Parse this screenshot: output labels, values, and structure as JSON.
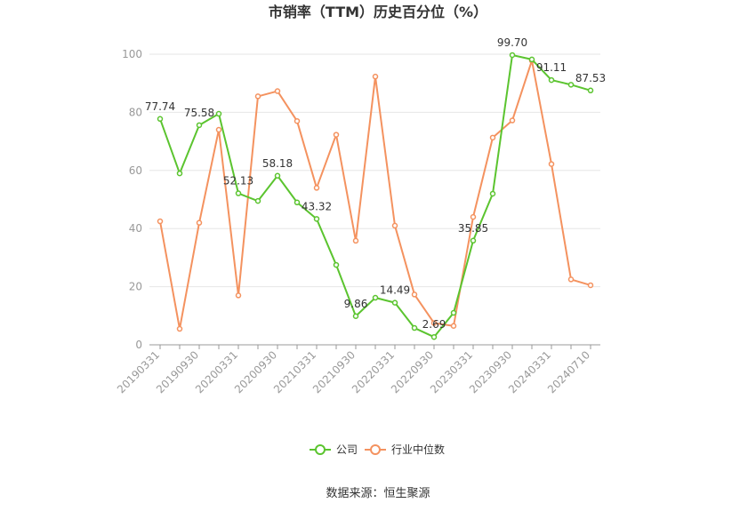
{
  "chart_data": {
    "type": "line",
    "title": "市销率（TTM）历史百分位（%）",
    "xlabel": "",
    "ylabel": "",
    "ylim": [
      0,
      100
    ],
    "yticks": [
      0,
      20,
      40,
      60,
      80,
      100
    ],
    "grid": true,
    "legend_position": "bottom",
    "x": [
      "20190331",
      "20190630",
      "20190930",
      "20191231",
      "20200331",
      "20200630",
      "20200930",
      "20201231",
      "20210331",
      "20210630",
      "20210930",
      "20211231",
      "20220331",
      "20220630",
      "20220930",
      "20221231",
      "20230331",
      "20230630",
      "20230930",
      "20231231",
      "20240331",
      "20240630",
      "20240710"
    ],
    "x_tick_labels": [
      "20190331",
      "20190930",
      "20200331",
      "20200930",
      "20210331",
      "20210930",
      "20220331",
      "20220930",
      "20230331",
      "20230930",
      "20240331",
      "20240710"
    ],
    "series": [
      {
        "name": "公司",
        "color": "#5bc42f",
        "values": [
          77.74,
          59,
          75.58,
          79.5,
          52.13,
          49.5,
          58.18,
          49,
          43.32,
          27.5,
          9.86,
          16.2,
          14.49,
          5.8,
          2.69,
          11,
          35.85,
          52,
          99.7,
          98.2,
          91.11,
          89.5,
          87.53
        ],
        "labels": {
          "0": "77.74",
          "2": "75.58",
          "4": "52.13",
          "6": "58.18",
          "8": "43.32",
          "10": "9.86",
          "12": "14.49",
          "14": "2.69",
          "16": "35.85",
          "18": "99.70",
          "20": "91.11",
          "22": "87.53"
        }
      },
      {
        "name": "行业中位数",
        "color": "#f4925f",
        "values": [
          42.5,
          5.5,
          42,
          74,
          17,
          85.5,
          87.3,
          77,
          54,
          72.3,
          35.8,
          92.3,
          41,
          17.3,
          7.5,
          6.5,
          44,
          71.3,
          77.2,
          97.8,
          62.2,
          22.5,
          20.5
        ]
      }
    ]
  },
  "source_text": "数据来源：恒生聚源"
}
